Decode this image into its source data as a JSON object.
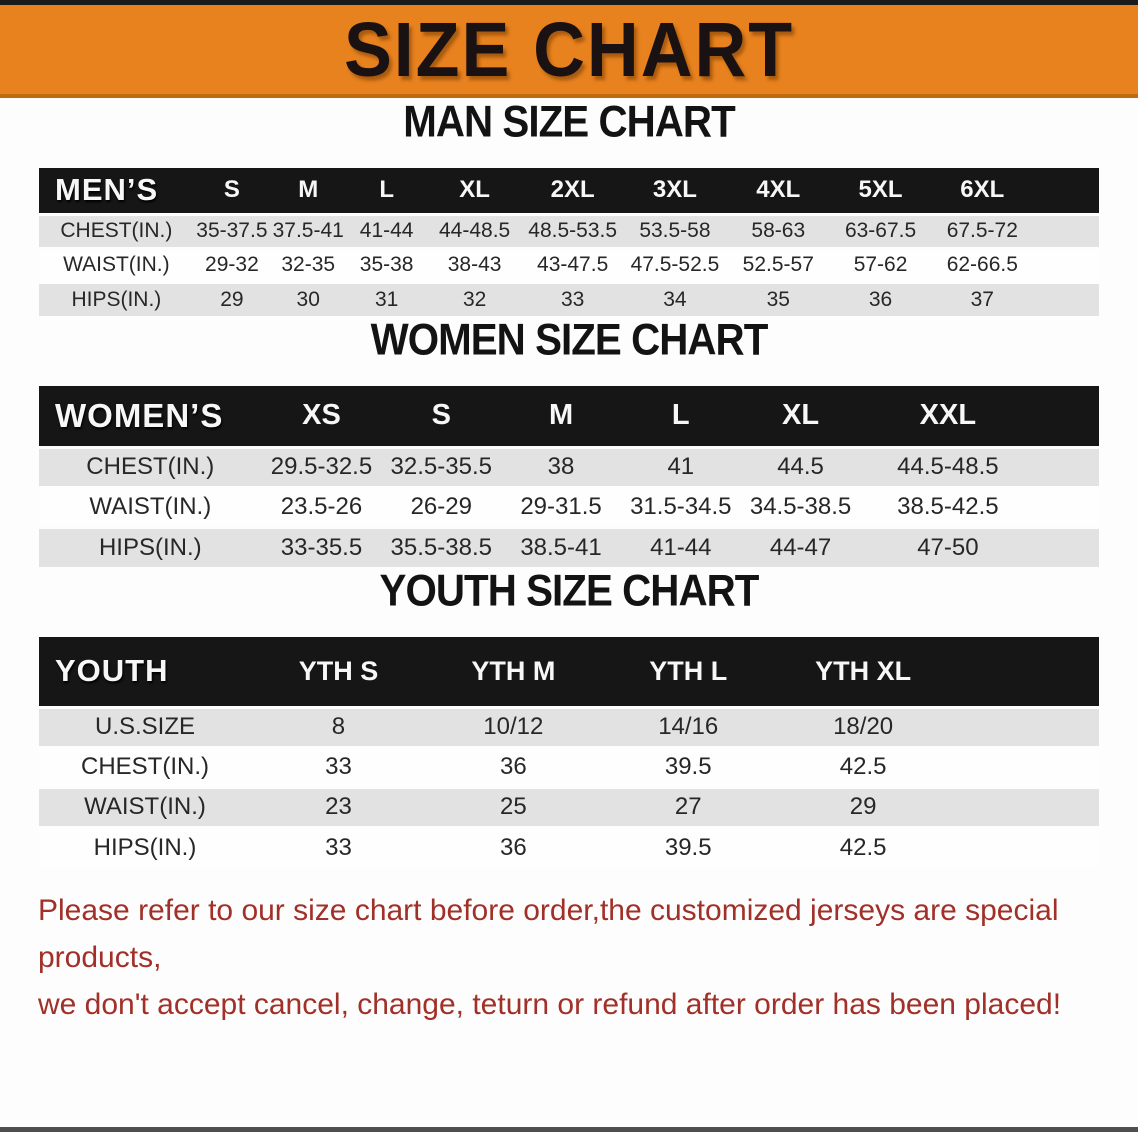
{
  "banner": {
    "title": "SIZE CHART"
  },
  "colors": {
    "banner_orange": "#E8821E",
    "banner_edge": "#C06A10",
    "table_header_black": "#161616",
    "row_gray": "#E2E2E2",
    "row_white": "#FEFEFE",
    "disclaimer_red": "#A13028"
  },
  "charts": [
    {
      "id": "men",
      "heading": "MAN SIZE CHART",
      "header_label": "MEN’S",
      "sizes": [
        "S",
        "M",
        "L",
        "XL",
        "2XL",
        "3XL",
        "4XL",
        "5XL",
        "6XL"
      ],
      "rows": [
        {
          "label": "CHEST(IN.)",
          "values": [
            "35-37.5",
            "37.5-41",
            "41-44",
            "44-48.5",
            "48.5-53.5",
            "53.5-58",
            "58-63",
            "63-67.5",
            "67.5-72"
          ]
        },
        {
          "label": "WAIST(IN.)",
          "values": [
            "29-32",
            "32-35",
            "35-38",
            "38-43",
            "43-47.5",
            "47.5-52.5",
            "52.5-57",
            "57-62",
            "62-66.5"
          ]
        },
        {
          "label": "HIPS(IN.)",
          "values": [
            "29",
            "30",
            "31",
            "32",
            "33",
            "34",
            "35",
            "36",
            "37"
          ]
        }
      ]
    },
    {
      "id": "women",
      "heading": "WOMEN SIZE CHART",
      "header_label": "WOMEN’S",
      "sizes": [
        "XS",
        "S",
        "M",
        "L",
        "XL",
        "XXL"
      ],
      "rows": [
        {
          "label": "CHEST(IN.)",
          "values": [
            "29.5-32.5",
            "32.5-35.5",
            "38",
            "41",
            "44.5",
            "44.5-48.5"
          ]
        },
        {
          "label": "WAIST(IN.)",
          "values": [
            "23.5-26",
            "26-29",
            "29-31.5",
            "31.5-34.5",
            "34.5-38.5",
            "38.5-42.5"
          ]
        },
        {
          "label": "HIPS(IN.)",
          "values": [
            "33-35.5",
            "35.5-38.5",
            "38.5-41",
            "41-44",
            "44-47",
            "47-50"
          ]
        }
      ]
    },
    {
      "id": "youth",
      "heading": "YOUTH SIZE CHART",
      "header_label": "YOUTH",
      "sizes": [
        "YTH S",
        "YTH M",
        "YTH L",
        "YTH XL"
      ],
      "rows": [
        {
          "label": "U.S.SIZE",
          "values": [
            "8",
            "10/12",
            "14/16",
            "18/20"
          ]
        },
        {
          "label": "CHEST(IN.)",
          "values": [
            "33",
            "36",
            "39.5",
            "42.5"
          ]
        },
        {
          "label": "WAIST(IN.)",
          "values": [
            "23",
            "25",
            "27",
            "29"
          ]
        },
        {
          "label": "HIPS(IN.)",
          "values": [
            "33",
            "36",
            "39.5",
            "42.5"
          ]
        }
      ]
    }
  ],
  "disclaimer": {
    "lines": [
      "Please refer to our size chart before order,the customized jerseys are special products,",
      "we don't accept cancel, change, teturn or refund after order has been placed!"
    ]
  }
}
